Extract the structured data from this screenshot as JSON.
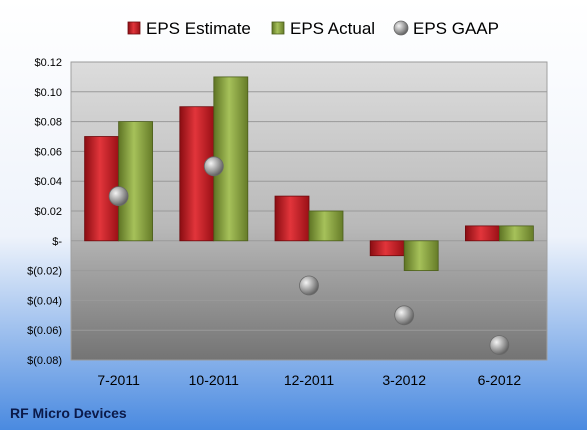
{
  "chart_data": {
    "type": "bar",
    "categories": [
      "7-2011",
      "10-2011",
      "12-2011",
      "3-2012",
      "6-2012"
    ],
    "series": [
      {
        "name": "EPS Estimate",
        "kind": "bar",
        "color": "#c0141c",
        "values": [
          0.07,
          0.09,
          0.03,
          -0.01,
          0.01
        ]
      },
      {
        "name": "EPS Actual",
        "kind": "bar",
        "color": "#8aa33a",
        "values": [
          0.08,
          0.11,
          0.02,
          -0.02,
          0.01
        ]
      },
      {
        "name": "EPS GAAP",
        "kind": "marker",
        "color": "#8c8c8c",
        "values": [
          0.03,
          0.05,
          -0.03,
          -0.05,
          -0.07
        ]
      }
    ],
    "ylim": [
      -0.08,
      0.12
    ],
    "yticks": [
      0.12,
      0.1,
      0.08,
      0.06,
      0.04,
      0.02,
      0,
      -0.02,
      -0.04,
      -0.06,
      -0.08
    ],
    "ytick_labels": [
      "$0.12",
      "$0.10",
      "$0.08",
      "$0.06",
      "$0.04",
      "$0.02",
      "$-",
      "$(0.02)",
      "$(0.04)",
      "$(0.06)",
      "$(0.08)"
    ],
    "grid": true,
    "legend_position": "top"
  },
  "footer": {
    "company": "RF Micro Devices"
  },
  "colors": {
    "background_top": "#ffffff",
    "background_bottom": "#4a8ae0",
    "plot_top": "#d8d8d8",
    "plot_bottom": "#7a7a7a"
  }
}
